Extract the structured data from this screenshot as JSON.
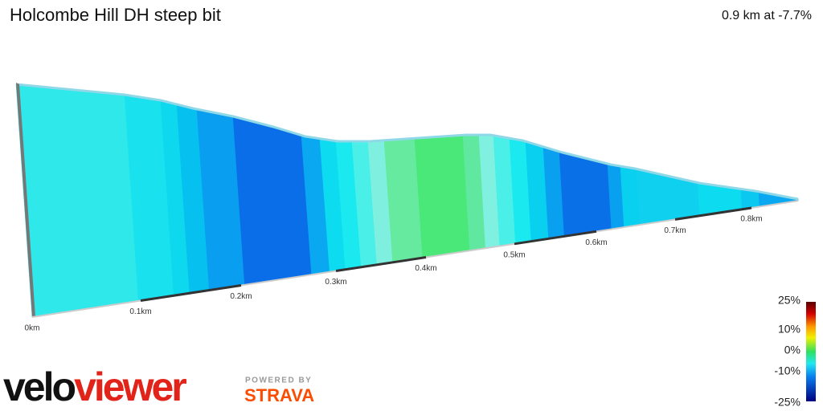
{
  "header": {
    "title": "Holcombe Hill DH steep bit",
    "summary": "0.9 km at -7.7%"
  },
  "distance_labels": [
    "0km",
    "0.1km",
    "0.2km",
    "0.3km",
    "0.4km",
    "0.5km",
    "0.6km",
    "0.7km",
    "0.8km"
  ],
  "legend": {
    "labels": [
      "25%",
      "10%",
      "0%",
      "-10%",
      "-25%"
    ]
  },
  "branding": {
    "velo": "velo",
    "viewer": "viewer",
    "powered_by": "POWERED BY",
    "partner": "STRAVA"
  }
}
